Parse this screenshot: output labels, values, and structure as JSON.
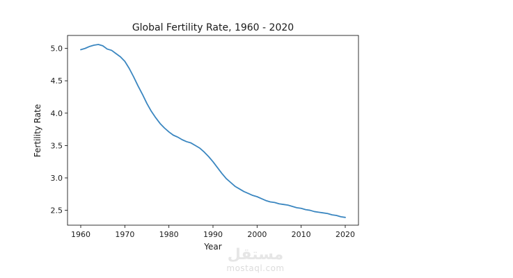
{
  "chart_data": {
    "type": "line",
    "title": "Global Fertility Rate, 1960 - 2020",
    "xlabel": "Year",
    "ylabel": "Fertility Rate",
    "xlim": [
      1957,
      2023
    ],
    "ylim": [
      2.27,
      5.2
    ],
    "xticks": [
      1960,
      1970,
      1980,
      1990,
      2000,
      2010,
      2020
    ],
    "yticks": [
      2.5,
      3.0,
      3.5,
      4.0,
      4.5,
      5.0
    ],
    "ytick_labels": [
      "2.5",
      "3.0",
      "3.5",
      "4.0",
      "4.5",
      "5.0"
    ],
    "grid": false,
    "series": [
      {
        "color": "#3a86c0",
        "x": [
          1960,
          1961,
          1962,
          1963,
          1964,
          1965,
          1966,
          1967,
          1968,
          1969,
          1970,
          1971,
          1972,
          1973,
          1974,
          1975,
          1976,
          1977,
          1978,
          1979,
          1980,
          1981,
          1982,
          1983,
          1984,
          1985,
          1986,
          1987,
          1988,
          1989,
          1990,
          1991,
          1992,
          1993,
          1994,
          1995,
          1996,
          1997,
          1998,
          1999,
          2000,
          2001,
          2002,
          2003,
          2004,
          2005,
          2006,
          2007,
          2008,
          2009,
          2010,
          2011,
          2012,
          2013,
          2014,
          2015,
          2016,
          2017,
          2018,
          2019,
          2020
        ],
        "y": [
          4.98,
          5.0,
          5.03,
          5.05,
          5.06,
          5.04,
          4.99,
          4.97,
          4.92,
          4.87,
          4.8,
          4.69,
          4.56,
          4.42,
          4.29,
          4.15,
          4.03,
          3.93,
          3.84,
          3.77,
          3.71,
          3.66,
          3.63,
          3.59,
          3.56,
          3.54,
          3.5,
          3.46,
          3.4,
          3.33,
          3.25,
          3.16,
          3.07,
          2.99,
          2.93,
          2.87,
          2.83,
          2.79,
          2.76,
          2.73,
          2.71,
          2.68,
          2.65,
          2.63,
          2.62,
          2.6,
          2.59,
          2.58,
          2.56,
          2.54,
          2.53,
          2.51,
          2.5,
          2.48,
          2.47,
          2.46,
          2.45,
          2.43,
          2.42,
          2.4,
          2.39
        ]
      }
    ]
  },
  "watermark": {
    "logo_text": "مستقل",
    "url_text": "mostaql.com"
  }
}
